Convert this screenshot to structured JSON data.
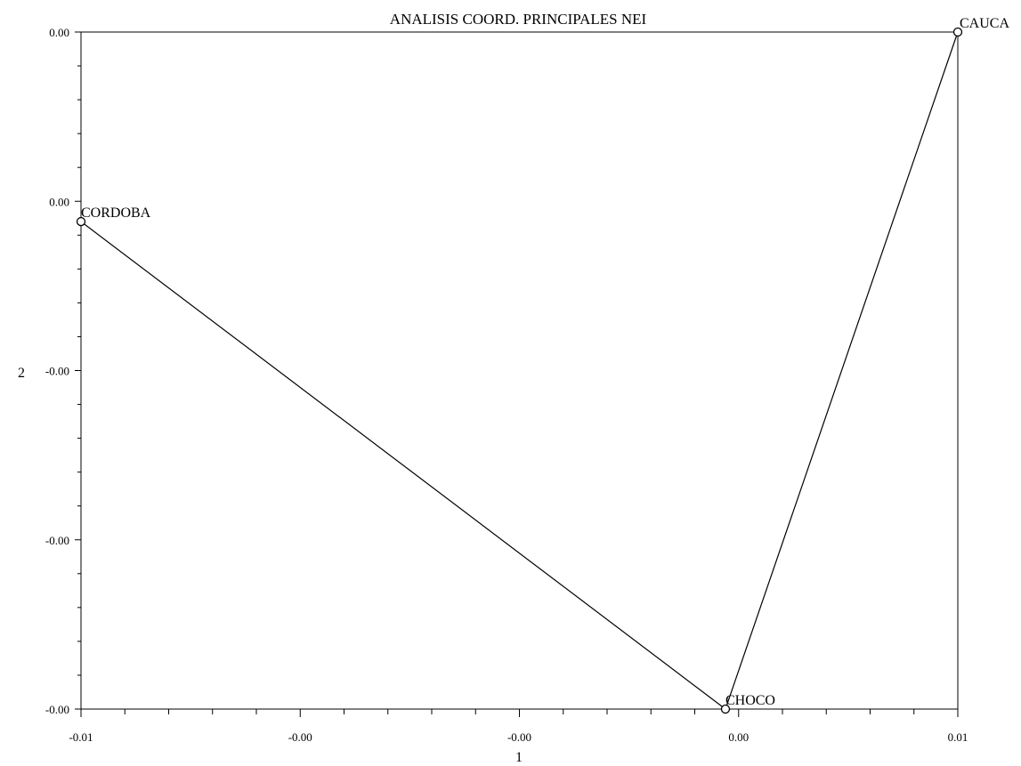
{
  "chart_data": {
    "type": "scatter",
    "title": "ANALISIS COORD. PRINCIPALES NEI",
    "xlabel": "1",
    "ylabel": "2",
    "xlim": [
      -0.01,
      0.01
    ],
    "ylim": [
      -0.01,
      0.01
    ],
    "x_tick_labels": [
      "-0.01",
      "-0.00",
      "-0.00",
      "0.00",
      "0.01"
    ],
    "y_tick_labels": [
      "0.00",
      "0.00",
      "-0.00",
      "-0.00",
      "-0.00"
    ],
    "grid": false,
    "points": [
      {
        "label": "CAUCA",
        "x": 0.01,
        "y": 0.01
      },
      {
        "label": "CORDOBA",
        "x": -0.01,
        "y": 0.0044
      },
      {
        "label": "CHOCO",
        "x": 0.0047,
        "y": -0.01
      }
    ],
    "polyline_order": [
      "CAUCA",
      "CHOCO",
      "CORDOBA"
    ]
  }
}
